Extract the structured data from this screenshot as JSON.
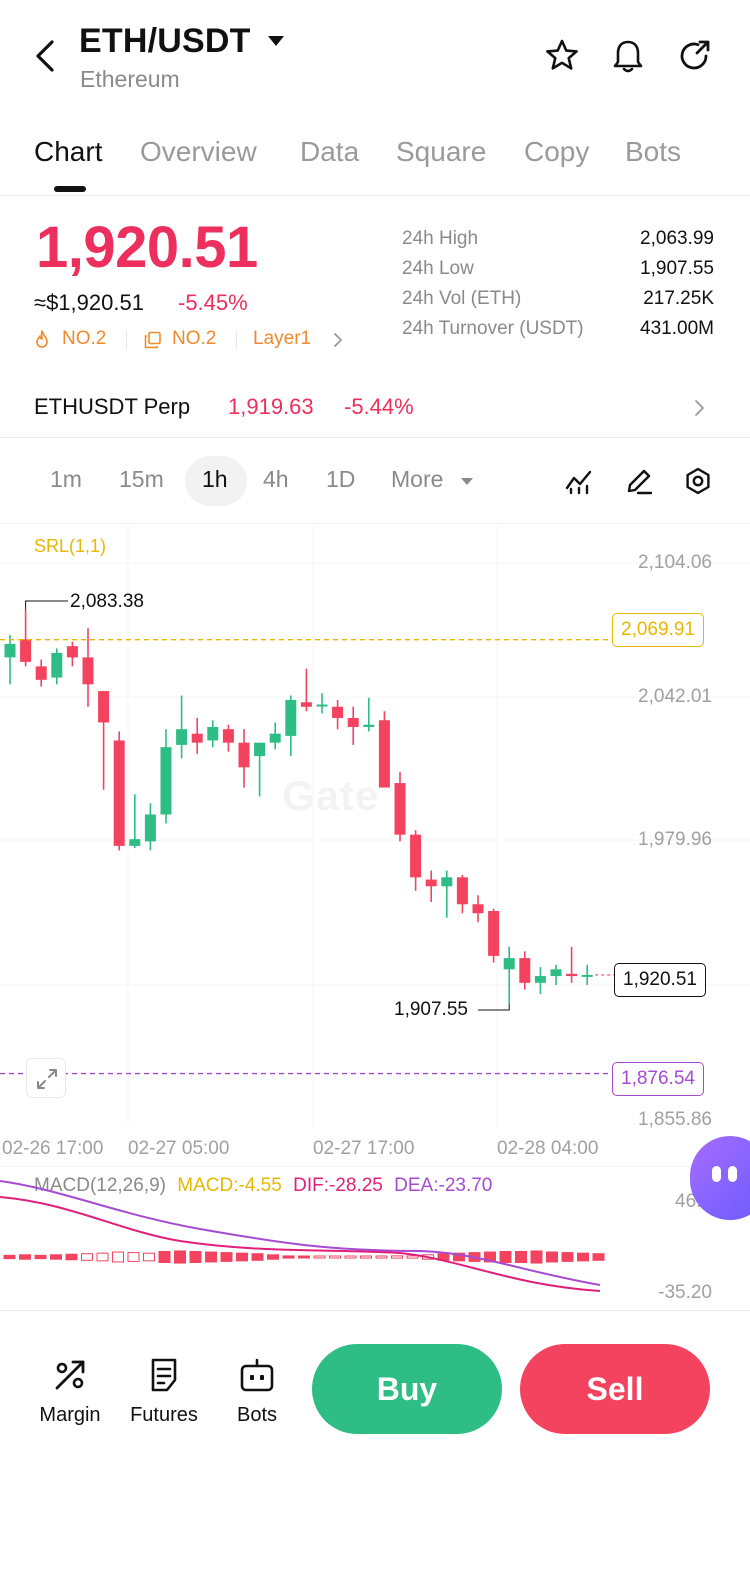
{
  "header": {
    "pair": "ETH/USDT",
    "subtitle": "Ethereum",
    "icons": [
      "back-icon",
      "star-icon",
      "bell-icon",
      "share-icon"
    ]
  },
  "tabs": [
    {
      "label": "Chart",
      "active": true
    },
    {
      "label": "Overview"
    },
    {
      "label": "Data"
    },
    {
      "label": "Square"
    },
    {
      "label": "Copy"
    },
    {
      "label": "Bots"
    }
  ],
  "ticker": {
    "price": "1,920.51",
    "usd_price": "≈$1,920.51",
    "change": "-5.45%",
    "tags": [
      {
        "label": "NO.2",
        "icon": "flame-icon"
      },
      {
        "label": "NO.2",
        "icon": "copy-icon"
      },
      {
        "label": "Layer1"
      }
    ],
    "stats": [
      {
        "label": "24h  High",
        "value": "2,063.99"
      },
      {
        "label": "24h  Low",
        "value": "1,907.55"
      },
      {
        "label": "24h  Vol (ETH)",
        "value": "217.25K"
      },
      {
        "label": "24h  Turnover (USDT)",
        "value": "431.00M"
      }
    ]
  },
  "perp": {
    "name": "ETHUSDT Perp",
    "price": "1,919.63",
    "change": "-5.44%"
  },
  "timeframes": {
    "items": [
      "1m",
      "15m",
      "1h",
      "4h",
      "1D",
      "More"
    ],
    "selected": "1h"
  },
  "chart": {
    "indicator_label": "SRL(1,1)",
    "y_labels": [
      "2,104.06",
      "2,042.01",
      "1,979.96",
      "1,855.86"
    ],
    "x_labels": [
      "02-26 17:00",
      "02-27 05:00",
      "02-27 17:00",
      "02-28 04:00"
    ],
    "high_marker": "2,083.38",
    "low_marker": "1,907.55",
    "srl_upper": "2,069.91",
    "srl_lower": "1,876.54",
    "last_price": "1,920.51",
    "watermark": "Gate",
    "colors": {
      "up": "#2dbd85",
      "down": "#f3435f",
      "srl_upper": "#e8b800",
      "srl_lower": "#a64bd1"
    }
  },
  "chart_data": {
    "type": "candlestick",
    "ylim": [
      1855.86,
      2104.06
    ],
    "candles": [
      [
        2062,
        2072,
        2050,
        2068
      ],
      [
        2070,
        2083.38,
        2058,
        2060
      ],
      [
        2058,
        2061,
        2049,
        2052
      ],
      [
        2053,
        2066,
        2050,
        2064
      ],
      [
        2067,
        2069,
        2058,
        2062
      ],
      [
        2062,
        2075,
        2040,
        2050
      ],
      [
        2047,
        2047,
        2003,
        2033
      ],
      [
        2025,
        2029,
        1976,
        1978
      ],
      [
        1978,
        2001,
        1977,
        1981
      ],
      [
        1980,
        1997,
        1976,
        1992
      ],
      [
        1992,
        2030,
        1988,
        2022
      ],
      [
        2023,
        2045,
        2017,
        2030
      ],
      [
        2028,
        2035,
        2019,
        2024
      ],
      [
        2025,
        2034,
        2022,
        2031
      ],
      [
        2030,
        2032,
        2020,
        2024
      ],
      [
        2024,
        2030,
        2004,
        2013
      ],
      [
        2018,
        2022,
        2000,
        2024
      ],
      [
        2024,
        2033,
        2021,
        2028
      ],
      [
        2027,
        2045,
        2018,
        2043
      ],
      [
        2042,
        2057,
        2038,
        2040
      ],
      [
        2041,
        2046,
        2037,
        2041
      ],
      [
        2040,
        2043,
        2030,
        2035
      ],
      [
        2035,
        2040,
        2023,
        2031
      ],
      [
        2031,
        2044,
        2029,
        2032
      ],
      [
        2034,
        2038,
        2004,
        2004
      ],
      [
        2006,
        2011,
        1980,
        1983
      ],
      [
        1983,
        1985,
        1958,
        1964
      ],
      [
        1963,
        1967,
        1953,
        1960
      ],
      [
        1960,
        1967,
        1946,
        1964
      ],
      [
        1964,
        1965,
        1948,
        1952
      ],
      [
        1952,
        1956,
        1944,
        1948
      ],
      [
        1949,
        1950,
        1926,
        1929
      ],
      [
        1923,
        1933,
        1907.55,
        1928
      ],
      [
        1928,
        1931,
        1914,
        1917
      ],
      [
        1917,
        1924,
        1912,
        1920
      ],
      [
        1920,
        1925,
        1916,
        1923
      ],
      [
        1921,
        1933,
        1917,
        1920
      ],
      [
        1920,
        1925,
        1916,
        1920.51
      ]
    ]
  },
  "macd": {
    "title": "MACD(12,26,9)",
    "macd": "MACD:-4.55",
    "dif": "DIF:-28.25",
    "dea": "DEA:-23.70",
    "y_top": "46.7",
    "y_bottom": "-35.20",
    "colors": {
      "macd": "#e8b800",
      "dif": "#e0207a",
      "dea": "#a64bd1"
    }
  },
  "bottom_bar": {
    "items": [
      {
        "label": "Margin",
        "icon": "margin-icon"
      },
      {
        "label": "Futures",
        "icon": "futures-icon"
      },
      {
        "label": "Bots",
        "icon": "bots-icon"
      }
    ],
    "buy": "Buy",
    "sell": "Sell"
  }
}
